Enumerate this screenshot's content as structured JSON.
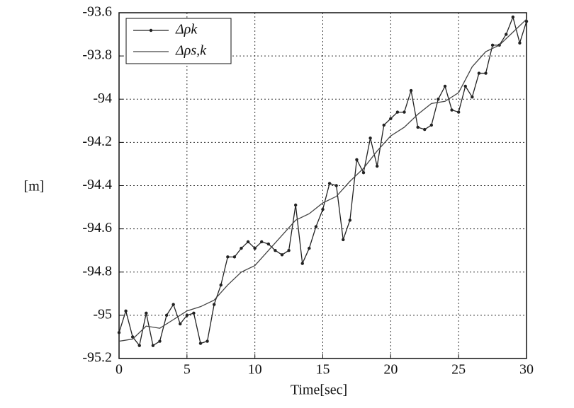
{
  "chart_data": {
    "type": "line",
    "xlabel": "Time[sec]",
    "ylabel": "[m]",
    "xlim": [
      0,
      30
    ],
    "xticks": [
      0,
      5,
      10,
      15,
      20,
      25,
      30
    ],
    "ylim": [
      -95.2,
      -93.6
    ],
    "yticks": [
      -95.2,
      -95,
      -94.8,
      -94.6,
      -94.4,
      -94.2,
      -94,
      -93.8,
      -93.6
    ],
    "grid": true,
    "legend": "upper left",
    "series": [
      {
        "name": "Δρk",
        "color": "#222222",
        "markers": true,
        "x": [
          0,
          0.5,
          1,
          1.5,
          2,
          2.5,
          3,
          3.5,
          4,
          4.5,
          5,
          5.5,
          6,
          6.5,
          7,
          7.5,
          8,
          8.5,
          9,
          9.5,
          10,
          10.5,
          11,
          11.5,
          12,
          12.5,
          13,
          13.5,
          14,
          14.5,
          15,
          15.5,
          16,
          16.5,
          17,
          17.5,
          18,
          18.5,
          19,
          19.5,
          20,
          20.5,
          21,
          21.5,
          22,
          22.5,
          23,
          23.5,
          24,
          24.5,
          25,
          25.5,
          26,
          26.5,
          27,
          27.5,
          28,
          28.5,
          29,
          29.5,
          30
        ],
        "values": [
          -95.08,
          -94.98,
          -95.1,
          -95.14,
          -94.99,
          -95.14,
          -95.12,
          -95.0,
          -94.95,
          -95.04,
          -95.0,
          -94.99,
          -95.13,
          -95.12,
          -94.95,
          -94.86,
          -94.73,
          -94.73,
          -94.69,
          -94.66,
          -94.69,
          -94.66,
          -94.67,
          -94.7,
          -94.72,
          -94.7,
          -94.49,
          -94.76,
          -94.69,
          -94.59,
          -94.51,
          -94.39,
          -94.4,
          -94.65,
          -94.56,
          -94.28,
          -94.34,
          -94.18,
          -94.31,
          -94.12,
          -94.09,
          -94.06,
          -94.06,
          -93.96,
          -94.13,
          -94.14,
          -94.12,
          -94.0,
          -93.94,
          -94.05,
          -94.06,
          -93.94,
          -93.99,
          -93.88,
          -93.88,
          -93.75,
          -93.75,
          -93.7,
          -93.62,
          -93.74,
          -93.64
        ]
      },
      {
        "name": "Δρs,k",
        "color": "#444444",
        "markers": false,
        "x": [
          0,
          1,
          2,
          3,
          4,
          5,
          6,
          7,
          8,
          9,
          10,
          11,
          12,
          13,
          14,
          15,
          16,
          17,
          18,
          19,
          20,
          21,
          22,
          23,
          24,
          25,
          26,
          27,
          28,
          29,
          30
        ],
        "values": [
          -95.12,
          -95.11,
          -95.05,
          -95.06,
          -95.02,
          -94.98,
          -94.96,
          -94.93,
          -94.86,
          -94.8,
          -94.77,
          -94.7,
          -94.63,
          -94.56,
          -94.53,
          -94.48,
          -94.45,
          -94.38,
          -94.32,
          -94.24,
          -94.17,
          -94.13,
          -94.07,
          -94.02,
          -94.01,
          -93.97,
          -93.85,
          -93.78,
          -93.75,
          -93.69,
          -93.63
        ]
      }
    ]
  }
}
